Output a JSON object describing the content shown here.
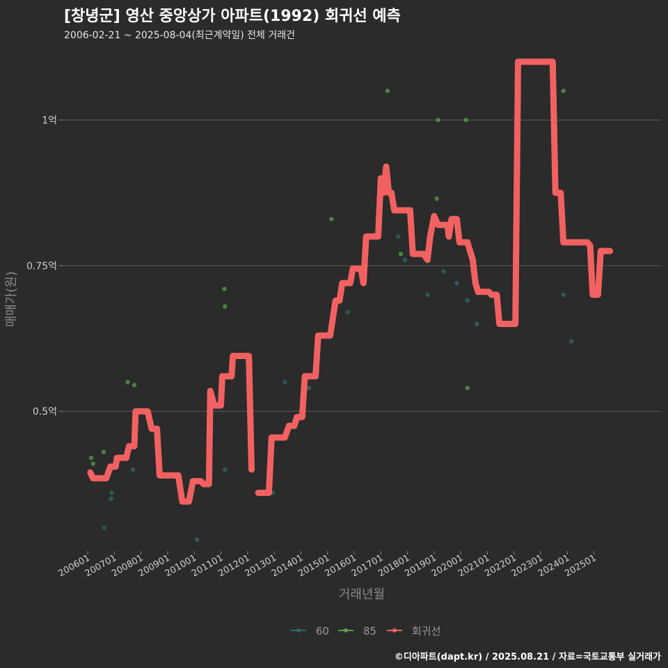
{
  "chart_data": {
    "type": "line",
    "title": "[창녕군] 영산 중앙상가 아파트(1992) 회귀선 예측",
    "subtitle": "2006-02-21 ~ 2025-08-04(최근계약일) 전체 거래건",
    "xlabel": "거래년월",
    "ylabel": "매매가(원)",
    "caption": "©디아파트(dapt.kr) / 2025.08.21 / 자료=국토교통부 실거래가",
    "x_range": [
      2006.0,
      2026.0
    ],
    "ylim": [
      0.26,
      1.12
    ],
    "y_ticks": [
      {
        "value": 0.5,
        "label": "0.5억"
      },
      {
        "value": 0.75,
        "label": "0.75억"
      },
      {
        "value": 1.0,
        "label": "1억"
      }
    ],
    "x_ticks": [
      {
        "value": 2006.0,
        "label": "200601"
      },
      {
        "value": 2007.0,
        "label": "200701"
      },
      {
        "value": 2008.0,
        "label": "200801"
      },
      {
        "value": 2009.0,
        "label": "200901"
      },
      {
        "value": 2010.0,
        "label": "201001"
      },
      {
        "value": 2011.0,
        "label": "201101"
      },
      {
        "value": 2012.0,
        "label": "201201"
      },
      {
        "value": 2013.0,
        "label": "201301"
      },
      {
        "value": 2014.0,
        "label": "201401"
      },
      {
        "value": 2015.0,
        "label": "201501"
      },
      {
        "value": 2016.0,
        "label": "201601"
      },
      {
        "value": 2017.0,
        "label": "201701"
      },
      {
        "value": 2018.0,
        "label": "201801"
      },
      {
        "value": 2019.0,
        "label": "201901"
      },
      {
        "value": 2020.0,
        "label": "202001"
      },
      {
        "value": 2021.0,
        "label": "202101"
      },
      {
        "value": 2022.0,
        "label": "202201"
      },
      {
        "value": 2023.0,
        "label": "202301"
      },
      {
        "value": 2024.0,
        "label": "202401"
      },
      {
        "value": 2025.0,
        "label": "202501"
      }
    ],
    "legend": {
      "position": "bottom"
    },
    "series": [
      {
        "name": "60",
        "kind": "scatter",
        "color": "#2e6b66",
        "points": [
          [
            2006.62,
            0.3
          ],
          [
            2006.88,
            0.35
          ],
          [
            2006.9,
            0.36
          ],
          [
            2007.7,
            0.4
          ],
          [
            2010.1,
            0.28
          ],
          [
            2011.15,
            0.4
          ],
          [
            2012.95,
            0.36
          ],
          [
            2013.4,
            0.55
          ],
          [
            2014.05,
            0.52
          ],
          [
            2014.3,
            0.54
          ],
          [
            2015.75,
            0.67
          ],
          [
            2017.65,
            0.8
          ],
          [
            2017.9,
            0.76
          ],
          [
            2018.75,
            0.7
          ],
          [
            2019.35,
            0.74
          ],
          [
            2019.85,
            0.72
          ],
          [
            2020.25,
            0.69
          ],
          [
            2020.6,
            0.65
          ],
          [
            2023.85,
            0.7
          ],
          [
            2024.15,
            0.62
          ]
        ]
      },
      {
        "name": "85",
        "kind": "scatter",
        "color": "#56a04a",
        "points": [
          [
            2006.13,
            0.42
          ],
          [
            2006.2,
            0.41
          ],
          [
            2006.6,
            0.43
          ],
          [
            2007.5,
            0.55
          ],
          [
            2007.75,
            0.545
          ],
          [
            2011.13,
            0.71
          ],
          [
            2011.15,
            0.68
          ],
          [
            2015.15,
            0.83
          ],
          [
            2017.25,
            1.05
          ],
          [
            2017.75,
            0.77
          ],
          [
            2019.1,
            0.865
          ],
          [
            2019.15,
            1.0
          ],
          [
            2020.2,
            1.0
          ],
          [
            2020.25,
            0.54
          ],
          [
            2023.85,
            1.05
          ]
        ]
      },
      {
        "name": "회귀선",
        "kind": "line",
        "color": "#f26161",
        "segments": [
          [
            [
              2006.1,
              0.395
            ],
            [
              2006.2,
              0.385
            ],
            [
              2006.7,
              0.385
            ],
            [
              2006.85,
              0.405
            ],
            [
              2007.05,
              0.405
            ],
            [
              2007.1,
              0.42
            ],
            [
              2007.45,
              0.42
            ],
            [
              2007.55,
              0.44
            ],
            [
              2007.75,
              0.44
            ],
            [
              2007.8,
              0.5
            ],
            [
              2008.25,
              0.5
            ],
            [
              2008.4,
              0.47
            ],
            [
              2008.6,
              0.47
            ],
            [
              2008.7,
              0.39
            ],
            [
              2009.4,
              0.39
            ],
            [
              2009.55,
              0.345
            ],
            [
              2009.8,
              0.345
            ],
            [
              2009.95,
              0.38
            ],
            [
              2010.25,
              0.38
            ],
            [
              2010.35,
              0.375
            ],
            [
              2010.55,
              0.375
            ],
            [
              2010.6,
              0.535
            ],
            [
              2010.75,
              0.51
            ],
            [
              2011.0,
              0.51
            ],
            [
              2011.05,
              0.56
            ],
            [
              2011.4,
              0.56
            ],
            [
              2011.45,
              0.595
            ],
            [
              2012.05,
              0.595
            ],
            [
              2012.15,
              0.4
            ]
          ],
          [
            [
              2012.4,
              0.36
            ],
            [
              2012.8,
              0.36
            ],
            [
              2012.9,
              0.455
            ],
            [
              2013.4,
              0.455
            ],
            [
              2013.55,
              0.475
            ],
            [
              2013.75,
              0.475
            ],
            [
              2013.85,
              0.49
            ],
            [
              2014.05,
              0.49
            ],
            [
              2014.15,
              0.56
            ],
            [
              2014.55,
              0.56
            ],
            [
              2014.65,
              0.63
            ],
            [
              2015.1,
              0.63
            ],
            [
              2015.3,
              0.69
            ],
            [
              2015.45,
              0.69
            ],
            [
              2015.55,
              0.72
            ],
            [
              2015.85,
              0.72
            ],
            [
              2015.95,
              0.745
            ],
            [
              2016.25,
              0.745
            ],
            [
              2016.35,
              0.72
            ],
            [
              2016.45,
              0.8
            ],
            [
              2016.9,
              0.8
            ],
            [
              2017.0,
              0.9
            ],
            [
              2017.1,
              0.875
            ],
            [
              2017.2,
              0.92
            ],
            [
              2017.3,
              0.875
            ],
            [
              2017.4,
              0.875
            ],
            [
              2017.5,
              0.845
            ],
            [
              2018.1,
              0.845
            ],
            [
              2018.2,
              0.77
            ],
            [
              2018.6,
              0.77
            ],
            [
              2018.75,
              0.76
            ],
            [
              2018.85,
              0.8
            ],
            [
              2019.0,
              0.835
            ],
            [
              2019.15,
              0.82
            ],
            [
              2019.5,
              0.82
            ],
            [
              2019.55,
              0.8
            ],
            [
              2019.65,
              0.83
            ],
            [
              2019.85,
              0.83
            ],
            [
              2019.95,
              0.79
            ],
            [
              2020.25,
              0.79
            ],
            [
              2020.45,
              0.76
            ],
            [
              2020.55,
              0.72
            ],
            [
              2020.65,
              0.705
            ],
            [
              2021.05,
              0.705
            ],
            [
              2021.15,
              0.7
            ],
            [
              2021.35,
              0.7
            ],
            [
              2021.45,
              0.65
            ],
            [
              2022.05,
              0.65
            ],
            [
              2022.15,
              1.1
            ],
            [
              2023.45,
              1.1
            ],
            [
              2023.55,
              0.875
            ],
            [
              2023.75,
              0.875
            ],
            [
              2023.85,
              0.79
            ],
            [
              2024.75,
              0.79
            ],
            [
              2024.85,
              0.785
            ],
            [
              2024.95,
              0.7
            ],
            [
              2025.15,
              0.7
            ],
            [
              2025.25,
              0.775
            ],
            [
              2025.6,
              0.775
            ]
          ]
        ]
      }
    ]
  }
}
